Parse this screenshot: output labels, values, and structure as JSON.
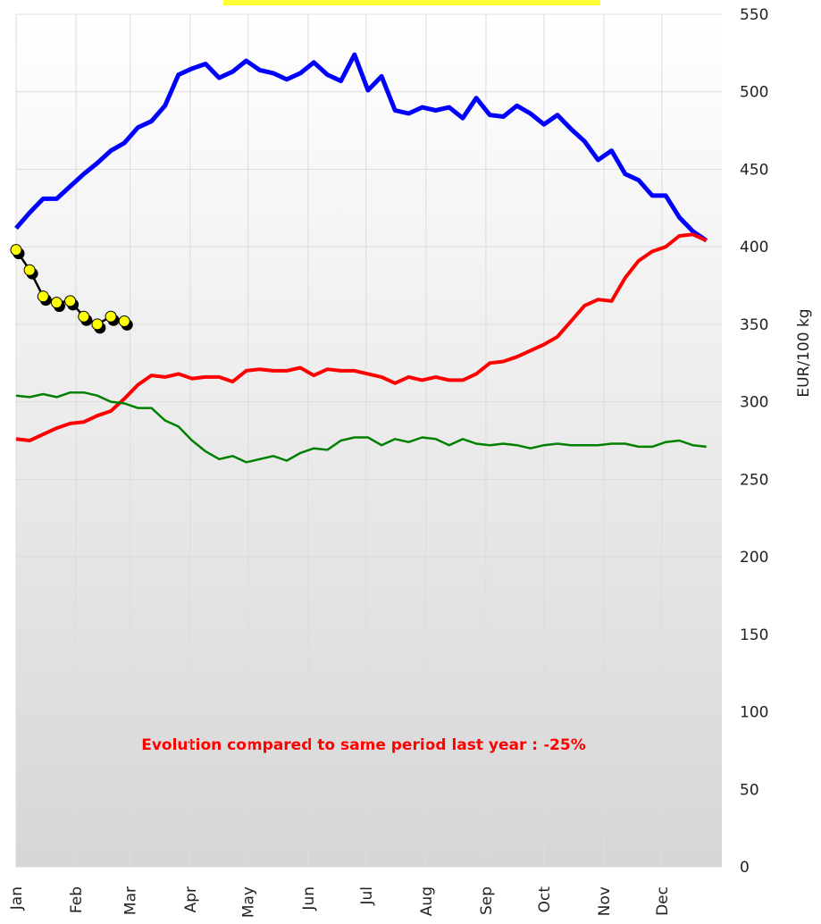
{
  "chart_data": {
    "type": "line",
    "ylabel": "EUR/100 kg",
    "annotation": "Evolution compared to same period last year : -25%",
    "xlim": [
      1,
      366
    ],
    "xticks": [
      {
        "value": 1,
        "label": "Jan"
      },
      {
        "value": 32,
        "label": "Feb"
      },
      {
        "value": 60,
        "label": "Mar"
      },
      {
        "value": 91,
        "label": "Apr"
      },
      {
        "value": 121,
        "label": "May"
      },
      {
        "value": 152,
        "label": "Jun"
      },
      {
        "value": 182,
        "label": "Jul"
      },
      {
        "value": 213,
        "label": "Aug"
      },
      {
        "value": 244,
        "label": "Sep"
      },
      {
        "value": 274,
        "label": "Oct"
      },
      {
        "value": 305,
        "label": "Nov"
      },
      {
        "value": 335,
        "label": "Dec"
      }
    ],
    "ylim": [
      0,
      550
    ],
    "yticks": [
      0,
      50,
      100,
      150,
      200,
      250,
      300,
      350,
      400,
      450,
      500,
      550
    ],
    "grid": true,
    "x": [
      1,
      8,
      15,
      22,
      29,
      36,
      43,
      50,
      57,
      64,
      71,
      78,
      85,
      92,
      99,
      106,
      113,
      120,
      127,
      134,
      141,
      148,
      155,
      162,
      169,
      176,
      183,
      190,
      197,
      204,
      211,
      218,
      225,
      232,
      239,
      246,
      253,
      260,
      267,
      274,
      281,
      288,
      295,
      302,
      309,
      316,
      323,
      330,
      337,
      344,
      351,
      358
    ],
    "series": [
      {
        "color": "#0000ff",
        "width": 5,
        "values": [
          412,
          422,
          431,
          431,
          439,
          447,
          454,
          462,
          467,
          477,
          481,
          491,
          511,
          515,
          518,
          509,
          513,
          520,
          514,
          512,
          508,
          512,
          519,
          511,
          507,
          524,
          501,
          510,
          488,
          486,
          490,
          488,
          490,
          483,
          496,
          485,
          484,
          491,
          486,
          479,
          485,
          476,
          468,
          456,
          462,
          447,
          443,
          433,
          433,
          419,
          410,
          404
        ]
      },
      {
        "color": "#ff0000",
        "width": 4,
        "values": [
          276,
          275,
          279,
          283,
          286,
          287,
          291,
          294,
          302,
          311,
          317,
          316,
          318,
          315,
          316,
          316,
          313,
          320,
          321,
          320,
          320,
          322,
          317,
          321,
          320,
          320,
          318,
          316,
          312,
          316,
          314,
          316,
          314,
          314,
          318,
          325,
          326,
          329,
          333,
          337,
          342,
          352,
          362,
          366,
          365,
          380,
          391,
          397,
          400,
          407,
          408,
          404
        ]
      },
      {
        "color": "#008000",
        "width": 2.5,
        "values": [
          304,
          303,
          305,
          303,
          306,
          306,
          304,
          300,
          299,
          296,
          296,
          288,
          284,
          275,
          268,
          263,
          265,
          261,
          263,
          265,
          262,
          267,
          270,
          269,
          275,
          277,
          277,
          272,
          276,
          274,
          277,
          276,
          272,
          276,
          273,
          272,
          273,
          272,
          270,
          272,
          273,
          272,
          272,
          272,
          273,
          273,
          271,
          271,
          274,
          275,
          272,
          271
        ]
      },
      {
        "color": "#000000",
        "marker_color": "#ffff00",
        "width": 2.5,
        "values": [
          398,
          385,
          368,
          364,
          365,
          355,
          350,
          355,
          352,
          null,
          null,
          null,
          null,
          null,
          null,
          null,
          null,
          null,
          null,
          null,
          null,
          null,
          null,
          null,
          null,
          null,
          null,
          null,
          null,
          null,
          null,
          null,
          null,
          null,
          null,
          null,
          null,
          null,
          null,
          null,
          null,
          null,
          null,
          null,
          null,
          null,
          null,
          null,
          null,
          null,
          null,
          null
        ]
      }
    ]
  }
}
